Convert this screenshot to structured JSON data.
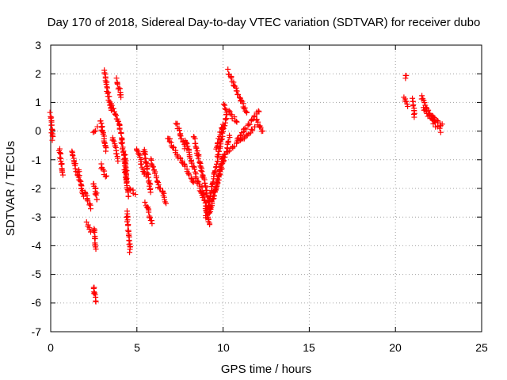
{
  "chart_data": {
    "type": "scatter",
    "title": "Day 170 of 2018, Sidereal Day-to-day VTEC variation (SDTVAR) for receiver dubo",
    "xlabel": "GPS time / hours",
    "ylabel": "SDTVAR / TECUs",
    "xlim": [
      0,
      25
    ],
    "ylim": [
      -7,
      3
    ],
    "x_ticks": [
      "0",
      "5",
      "10",
      "15",
      "20",
      "25"
    ],
    "y_ticks": [
      "3",
      "2",
      "1",
      "0",
      "-1",
      "-2",
      "-3",
      "-4",
      "-5",
      "-6",
      "-7"
    ],
    "grid": true,
    "marker": "+",
    "series_color": "#ff0000",
    "segments": [
      {
        "x0": 0.0,
        "x1": 0.1,
        "y0": 0.6,
        "y1": -0.3
      },
      {
        "x0": 0.5,
        "x1": 0.7,
        "y0": -0.6,
        "y1": -1.5
      },
      {
        "x0": 1.2,
        "x1": 1.6,
        "y0": -0.7,
        "y1": -1.6
      },
      {
        "x0": 1.6,
        "x1": 1.9,
        "y0": -1.4,
        "y1": -2.3
      },
      {
        "x0": 2.0,
        "x1": 2.3,
        "y0": -2.1,
        "y1": -2.7
      },
      {
        "x0": 2.1,
        "x1": 2.3,
        "y0": -3.2,
        "y1": -3.5
      },
      {
        "x0": 2.5,
        "x1": 2.6,
        "y0": -3.4,
        "y1": -4.1
      },
      {
        "x0": 2.5,
        "x1": 2.6,
        "y0": -5.4,
        "y1": -6.0
      },
      {
        "x0": 2.5,
        "x1": 2.7,
        "y0": 0.0,
        "y1": 0.1
      },
      {
        "x0": 2.5,
        "x1": 2.7,
        "y0": -1.8,
        "y1": -2.4
      },
      {
        "x0": 2.9,
        "x1": 3.2,
        "y0": 0.4,
        "y1": -0.7
      },
      {
        "x0": 2.9,
        "x1": 3.2,
        "y0": -1.2,
        "y1": -1.6
      },
      {
        "x0": 3.1,
        "x1": 3.5,
        "y0": 2.1,
        "y1": 0.7
      },
      {
        "x0": 3.5,
        "x1": 3.9,
        "y0": 1.0,
        "y1": 0.3
      },
      {
        "x0": 3.8,
        "x1": 4.1,
        "y0": 1.8,
        "y1": 1.2
      },
      {
        "x0": 3.6,
        "x1": 3.9,
        "y0": -0.2,
        "y1": -1.0
      },
      {
        "x0": 4.0,
        "x1": 4.4,
        "y0": 0.3,
        "y1": -1.8
      },
      {
        "x0": 4.3,
        "x1": 4.5,
        "y0": -0.8,
        "y1": -2.3
      },
      {
        "x0": 4.4,
        "x1": 4.6,
        "y0": -2.8,
        "y1": -4.2
      },
      {
        "x0": 4.6,
        "x1": 4.9,
        "y0": -2.0,
        "y1": -2.2
      },
      {
        "x0": 5.0,
        "x1": 5.5,
        "y0": -0.6,
        "y1": -1.6
      },
      {
        "x0": 5.4,
        "x1": 5.8,
        "y0": -0.6,
        "y1": -2.1
      },
      {
        "x0": 5.5,
        "x1": 5.9,
        "y0": -2.5,
        "y1": -3.2
      },
      {
        "x0": 5.8,
        "x1": 6.3,
        "y0": -1.0,
        "y1": -2.0
      },
      {
        "x0": 6.4,
        "x1": 6.7,
        "y0": -2.0,
        "y1": -2.5
      },
      {
        "x0": 6.8,
        "x1": 7.4,
        "y0": -0.2,
        "y1": -0.9
      },
      {
        "x0": 7.3,
        "x1": 7.8,
        "y0": 0.3,
        "y1": -0.6
      },
      {
        "x0": 7.8,
        "x1": 8.8,
        "y0": -0.3,
        "y1": -2.3
      },
      {
        "x0": 7.5,
        "x1": 8.3,
        "y0": -0.9,
        "y1": -1.8
      },
      {
        "x0": 8.3,
        "x1": 9.3,
        "y0": -0.2,
        "y1": -2.8
      },
      {
        "x0": 8.8,
        "x1": 9.2,
        "y0": -2.0,
        "y1": -3.3
      },
      {
        "x0": 9.2,
        "x1": 10.0,
        "y0": -2.9,
        "y1": -0.9
      },
      {
        "x0": 9.0,
        "x1": 10.2,
        "y0": -3.0,
        "y1": 0.6
      },
      {
        "x0": 9.4,
        "x1": 10.4,
        "y0": -2.4,
        "y1": -0.2
      },
      {
        "x0": 9.6,
        "x1": 10.0,
        "y0": -0.6,
        "y1": 0.2
      },
      {
        "x0": 10.0,
        "x1": 10.8,
        "y0": 0.9,
        "y1": 0.3
      },
      {
        "x0": 10.3,
        "x1": 11.4,
        "y0": 2.1,
        "y1": 0.6
      },
      {
        "x0": 10.3,
        "x1": 11.8,
        "y0": -0.7,
        "y1": 0.1
      },
      {
        "x0": 10.8,
        "x1": 12.1,
        "y0": -0.3,
        "y1": 0.7
      },
      {
        "x0": 11.9,
        "x1": 12.3,
        "y0": 0.4,
        "y1": 0.0
      },
      {
        "x0": 20.6,
        "x1": 20.6,
        "y0": 1.9,
        "y1": 1.9
      },
      {
        "x0": 20.5,
        "x1": 20.7,
        "y0": 1.2,
        "y1": 0.9
      },
      {
        "x0": 21.0,
        "x1": 21.1,
        "y0": 1.1,
        "y1": 0.5
      },
      {
        "x0": 21.5,
        "x1": 22.2,
        "y0": 1.2,
        "y1": 0.3
      },
      {
        "x0": 21.6,
        "x1": 22.6,
        "y0": 0.8,
        "y1": 0.0
      },
      {
        "x0": 22.0,
        "x1": 22.7,
        "y0": 0.6,
        "y1": 0.2
      }
    ]
  }
}
